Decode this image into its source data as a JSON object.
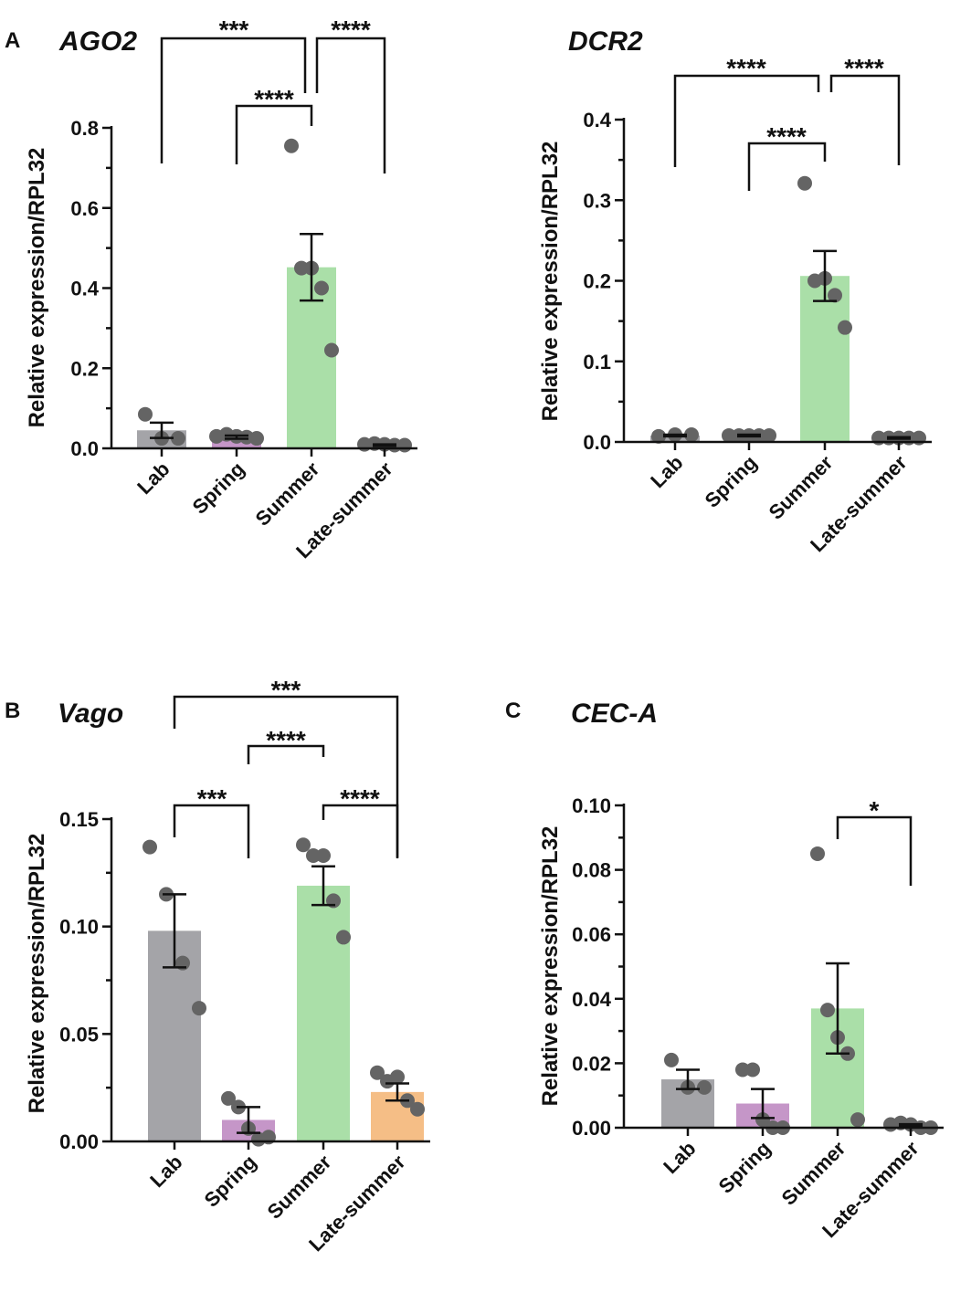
{
  "chart_data": [
    {
      "type": "bar",
      "panel": "A",
      "title": "AGO2",
      "ylabel": "Relative expression/RPL32",
      "ylim": [
        0,
        0.8
      ],
      "yticks": [
        0.0,
        0.2,
        0.4,
        0.6,
        0.8
      ],
      "ytick_labels": [
        "0.0",
        "0.2",
        "0.4",
        "0.6",
        "0.8"
      ],
      "categories": [
        "Lab",
        "Spring",
        "Summer",
        "Late-summer"
      ],
      "colors": [
        "#a4a4a8",
        "#c596c8",
        "#aadfa8",
        "#ffffff"
      ],
      "values": [
        0.045,
        0.028,
        0.452,
        0.008
      ],
      "errors": [
        0.019,
        0.004,
        0.083,
        0.002
      ],
      "points": [
        [
          0.085,
          0.025,
          0.025
        ],
        [
          0.03,
          0.035,
          0.03,
          0.028,
          0.025
        ],
        [
          0.755,
          0.45,
          0.45,
          0.4,
          0.245
        ],
        [
          0.01,
          0.012,
          0.01,
          0.008,
          0.008
        ]
      ],
      "significance": [
        {
          "from": 0,
          "to": 2,
          "label": "***"
        },
        {
          "from": 2,
          "to": 3,
          "label": "****"
        },
        {
          "from": 1,
          "to": 2,
          "label": "****"
        }
      ]
    },
    {
      "type": "bar",
      "panel": "",
      "title": "DCR2",
      "ylabel": "Relative expression/RPL32",
      "ylim": [
        0,
        0.4
      ],
      "yticks": [
        0.0,
        0.1,
        0.2,
        0.3,
        0.4
      ],
      "ytick_labels": [
        "0.0",
        "0.1",
        "0.2",
        "0.3",
        "0.4"
      ],
      "categories": [
        "Lab",
        "Spring",
        "Summer",
        "Late-summer"
      ],
      "colors": [
        "#a4a4a8",
        "#c596c8",
        "#aadfa8",
        "#ffffff"
      ],
      "values": [
        0.008,
        0.008,
        0.206,
        0.005
      ],
      "errors": [
        0.001,
        0.001,
        0.031,
        0.001
      ],
      "points": [
        [
          0.007,
          0.009,
          0.009
        ],
        [
          0.008,
          0.008,
          0.008,
          0.008,
          0.008
        ],
        [
          0.321,
          0.2,
          0.203,
          0.182,
          0.142
        ],
        [
          0.005,
          0.005,
          0.005,
          0.005,
          0.005
        ]
      ],
      "significance": [
        {
          "from": 0,
          "to": 2,
          "label": "****"
        },
        {
          "from": 2,
          "to": 3,
          "label": "****"
        },
        {
          "from": 1,
          "to": 2,
          "label": "****"
        }
      ]
    },
    {
      "type": "bar",
      "panel": "B",
      "title": "Vago",
      "ylabel": "Relative expression/RPL32",
      "ylim": [
        0,
        0.15
      ],
      "yticks": [
        0.0,
        0.05,
        0.1,
        0.15
      ],
      "ytick_labels": [
        "0.00",
        "0.05",
        "0.10",
        "0.15"
      ],
      "categories": [
        "Lab",
        "Spring",
        "Summer",
        "Late-summer"
      ],
      "colors": [
        "#a4a4a8",
        "#c596c8",
        "#aadfa8",
        "#f5be86"
      ],
      "values": [
        0.098,
        0.01,
        0.119,
        0.023
      ],
      "errors": [
        0.017,
        0.006,
        0.009,
        0.004
      ],
      "points": [
        [
          0.137,
          0.115,
          0.083,
          0.062
        ],
        [
          0.02,
          0.016,
          0.006,
          0.001,
          0.002
        ],
        [
          0.138,
          0.133,
          0.133,
          0.112,
          0.095
        ],
        [
          0.032,
          0.028,
          0.03,
          0.019,
          0.015
        ]
      ],
      "significance": [
        {
          "from": 0,
          "to": 1,
          "label": "***"
        },
        {
          "from": 2,
          "to": 3,
          "label": "****"
        },
        {
          "from": 1,
          "to": 2,
          "label": "****"
        },
        {
          "from": 0,
          "to": 3,
          "label": "***"
        }
      ]
    },
    {
      "type": "bar",
      "panel": "C",
      "title": "CEC-A",
      "ylabel": "Relative expression/RPL32",
      "ylim": [
        0,
        0.1
      ],
      "yticks": [
        0.0,
        0.02,
        0.04,
        0.06,
        0.08,
        0.1
      ],
      "ytick_labels": [
        "0.00",
        "0.02",
        "0.04",
        "0.06",
        "0.08",
        "0.10"
      ],
      "categories": [
        "Lab",
        "Spring",
        "Summer",
        "Late-summer"
      ],
      "colors": [
        "#a4a4a8",
        "#c596c8",
        "#aadfa8",
        "#ffffff"
      ],
      "values": [
        0.015,
        0.0075,
        0.037,
        0.0008
      ],
      "errors": [
        0.003,
        0.0045,
        0.014,
        0.0003
      ],
      "points": [
        [
          0.021,
          0.0125,
          0.0125
        ],
        [
          0.018,
          0.018,
          0.0025,
          0.0,
          0.0
        ],
        [
          0.085,
          0.0365,
          0.028,
          0.023,
          0.0025
        ],
        [
          0.001,
          0.0015,
          0.001,
          0.0,
          0.0
        ]
      ],
      "significance": [
        {
          "from": 2,
          "to": 3,
          "label": "*"
        }
      ]
    }
  ]
}
